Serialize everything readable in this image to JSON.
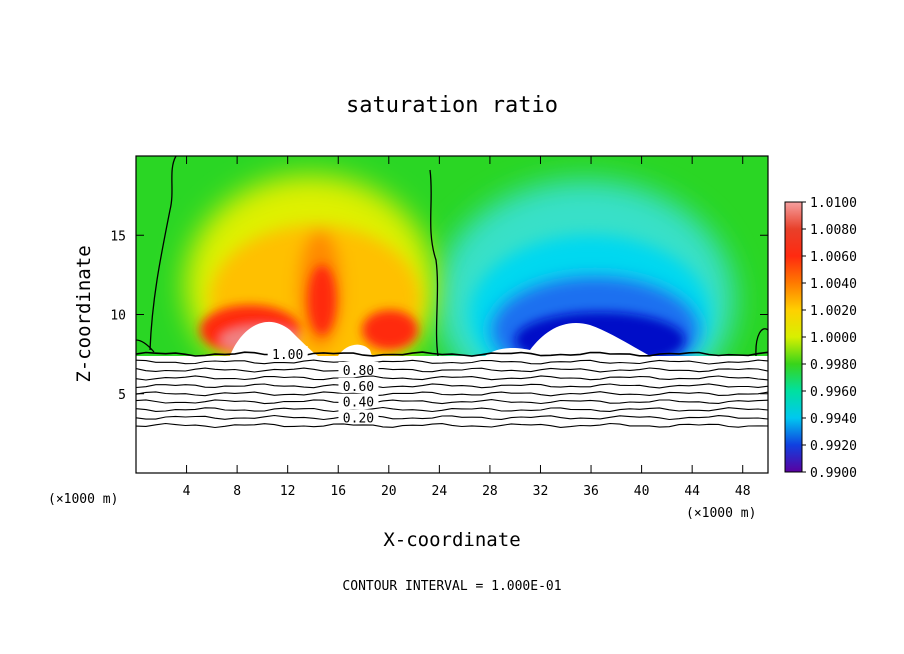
{
  "chart_data": {
    "type": "heatmap",
    "title": "saturation ratio",
    "xlabel": "X-coordinate",
    "ylabel": "Z-coordinate",
    "x_unit_left": "(×1000 m)",
    "x_unit_right": "(×1000 m)",
    "xlim": [
      0,
      50
    ],
    "ylim": [
      0,
      20
    ],
    "x_ticks": [
      4,
      8,
      12,
      16,
      20,
      24,
      28,
      32,
      36,
      40,
      44,
      48
    ],
    "y_ticks": [
      5,
      10,
      15
    ],
    "colorbar": {
      "labels": [
        "1.0100",
        "1.0080",
        "1.0060",
        "1.0040",
        "1.0020",
        "1.0000",
        "0.9980",
        "0.9960",
        "0.9940",
        "0.9920",
        "0.9900"
      ],
      "range": [
        0.99,
        1.01
      ],
      "colors": [
        "#f59a9a",
        "#e83a2a",
        "#ff3010",
        "#ff6a00",
        "#ffb000",
        "#e8f000",
        "#34d41a",
        "#00d890",
        "#00e8e8",
        "#1a8cf0",
        "#0010d0",
        "#5000a0"
      ]
    },
    "contour_labels": [
      "1.00",
      "0.80",
      "0.60",
      "0.40",
      "0.20"
    ],
    "contour_levels": [
      1.0,
      0.9,
      0.8,
      0.7,
      0.6,
      0.5,
      0.4,
      0.3,
      0.2,
      0.1
    ],
    "footer": "CONTOUR INTERVAL = 1.000E-01",
    "features": [
      {
        "x": 14.5,
        "z": 13.0,
        "value": 1.0065
      },
      {
        "x": 9.5,
        "z": 10.5,
        "value": 1.006
      },
      {
        "x": 20.5,
        "z": 9.5,
        "value": 1.0062
      },
      {
        "x": 34.0,
        "z": 10.0,
        "value": 0.9915
      },
      {
        "x": 40.0,
        "z": 9.0,
        "value": 0.9912
      }
    ]
  }
}
